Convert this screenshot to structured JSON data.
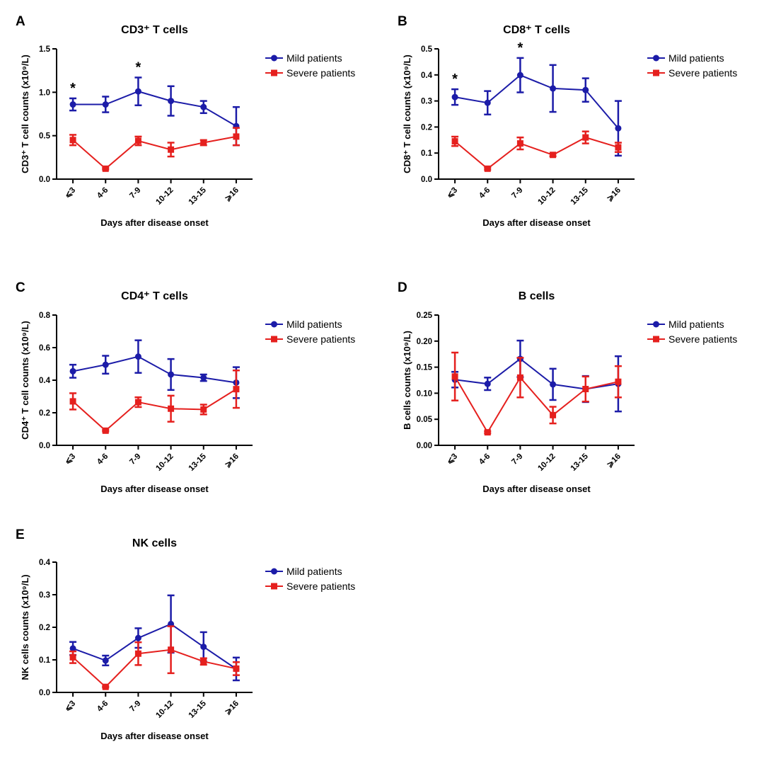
{
  "chart_data": [
    {
      "type": "line",
      "panel": "A",
      "title": "CD3⁺ T cells",
      "y_label": "CD3⁺ T cell counts (x10⁹/L)",
      "x_label": "Days after disease onset",
      "categories": [
        "⩽3",
        "4-6",
        "7-9",
        "10-12",
        "13-15",
        "⩾16"
      ],
      "significance": [
        "*",
        null,
        "*",
        null,
        null,
        null
      ],
      "ylim": [
        0,
        1.5
      ],
      "yticks": [
        {
          "value": 0,
          "label": "0.0"
        },
        0.5,
        {
          "value": 1,
          "label": "1.0"
        },
        1.5
      ],
      "series": [
        {
          "name": "Mild patients",
          "color": "#1c1ca8",
          "marker": "circle",
          "values": [
            0.86,
            0.86,
            1.01,
            0.9,
            0.83,
            0.61
          ],
          "errors": [
            0.07,
            0.09,
            0.16,
            0.17,
            0.07,
            0.22
          ]
        },
        {
          "name": "Severe patients",
          "color": "#e5201e",
          "marker": "square",
          "values": [
            0.45,
            0.12,
            0.44,
            0.34,
            0.42,
            0.49
          ],
          "errors": [
            0.06,
            0.01,
            0.05,
            0.08,
            0.03,
            0.1
          ]
        }
      ]
    },
    {
      "type": "line",
      "panel": "B",
      "title": "CD8⁺ T cells",
      "y_label": "CD8⁺ T cell counts (x10⁹/L)",
      "x_label": "Days after disease onset",
      "categories": [
        "⩽3",
        "4-6",
        "7-9",
        "10-12",
        "13-15",
        "⩾16"
      ],
      "significance": [
        "*",
        null,
        "*",
        null,
        null,
        null
      ],
      "ylim": [
        0,
        0.5
      ],
      "yticks": [
        {
          "value": 0,
          "label": "0.0"
        },
        0.1,
        0.2,
        0.3,
        0.4,
        0.5
      ],
      "series": [
        {
          "name": "Mild patients",
          "color": "#1c1ca8",
          "marker": "circle",
          "values": [
            0.315,
            0.293,
            0.399,
            0.348,
            0.342,
            0.195
          ],
          "errors": [
            0.03,
            0.045,
            0.066,
            0.09,
            0.045,
            0.105
          ]
        },
        {
          "name": "Severe patients",
          "color": "#e5201e",
          "marker": "square",
          "values": [
            0.145,
            0.04,
            0.137,
            0.093,
            0.16,
            0.122
          ],
          "errors": [
            0.018,
            0.004,
            0.023,
            0.005,
            0.023,
            0.018
          ]
        }
      ]
    },
    {
      "type": "line",
      "panel": "C",
      "title": "CD4⁺ T cells",
      "y_label": "CD4⁺ T cell counts (x10⁹/L)",
      "x_label": "Days after disease onset",
      "categories": [
        "⩽3",
        "4-6",
        "7-9",
        "10-12",
        "13-15",
        "⩾16"
      ],
      "ylim": [
        0,
        0.8
      ],
      "yticks": [
        {
          "value": 0,
          "label": "0.0"
        },
        0.2,
        0.4,
        0.6,
        0.8
      ],
      "series": [
        {
          "name": "Mild patients",
          "color": "#1c1ca8",
          "marker": "circle",
          "values": [
            0.455,
            0.495,
            0.545,
            0.435,
            0.415,
            0.385
          ],
          "errors": [
            0.04,
            0.055,
            0.1,
            0.095,
            0.02,
            0.095
          ]
        },
        {
          "name": "Severe patients",
          "color": "#e5201e",
          "marker": "square",
          "values": [
            0.27,
            0.09,
            0.265,
            0.225,
            0.22,
            0.345
          ],
          "errors": [
            0.05,
            0.005,
            0.03,
            0.08,
            0.03,
            0.115
          ]
        }
      ]
    },
    {
      "type": "line",
      "panel": "D",
      "title": "B cells",
      "y_label": "B cells counts (x10⁹/L)",
      "x_label": "Days after disease onset",
      "categories": [
        "⩽3",
        "4-6",
        "7-9",
        "10-12",
        "13-15",
        "⩾16"
      ],
      "ylim": [
        0,
        0.25
      ],
      "yticks": [
        {
          "value": 0,
          "label": "0.00"
        },
        0.05,
        {
          "value": 0.1,
          "label": "0.10"
        },
        0.15,
        {
          "value": 0.2,
          "label": "0.20"
        },
        0.25
      ],
      "series": [
        {
          "name": "Mild patients",
          "color": "#1c1ca8",
          "marker": "circle",
          "values": [
            0.126,
            0.118,
            0.166,
            0.117,
            0.108,
            0.118
          ],
          "errors": [
            0.015,
            0.012,
            0.035,
            0.03,
            0.025,
            0.053
          ]
        },
        {
          "name": "Severe patients",
          "color": "#e5201e",
          "marker": "square",
          "values": [
            0.132,
            0.025,
            0.13,
            0.058,
            0.108,
            0.122
          ],
          "errors": [
            0.046,
            0.002,
            0.038,
            0.016,
            0.024,
            0.03
          ]
        }
      ]
    },
    {
      "type": "line",
      "panel": "E",
      "title": "NK cells",
      "y_label": "NK cells counts (x10⁹/L)",
      "x_label": "Days after disease onset",
      "categories": [
        "⩽3",
        "4-6",
        "7-9",
        "10-12",
        "13-15",
        "⩾16"
      ],
      "ylim": [
        0,
        0.4
      ],
      "yticks": [
        {
          "value": 0,
          "label": "0.0"
        },
        0.1,
        0.2,
        0.3,
        0.4
      ],
      "series": [
        {
          "name": "Mild patients",
          "color": "#1c1ca8",
          "marker": "circle",
          "values": [
            0.135,
            0.098,
            0.167,
            0.21,
            0.14,
            0.072
          ],
          "errors": [
            0.02,
            0.015,
            0.03,
            0.088,
            0.045,
            0.035
          ]
        },
        {
          "name": "Severe patients",
          "color": "#e5201e",
          "marker": "square",
          "values": [
            0.108,
            0.017,
            0.119,
            0.131,
            0.095,
            0.073
          ],
          "errors": [
            0.018,
            0.002,
            0.035,
            0.072,
            0.01,
            0.02
          ]
        }
      ]
    }
  ]
}
